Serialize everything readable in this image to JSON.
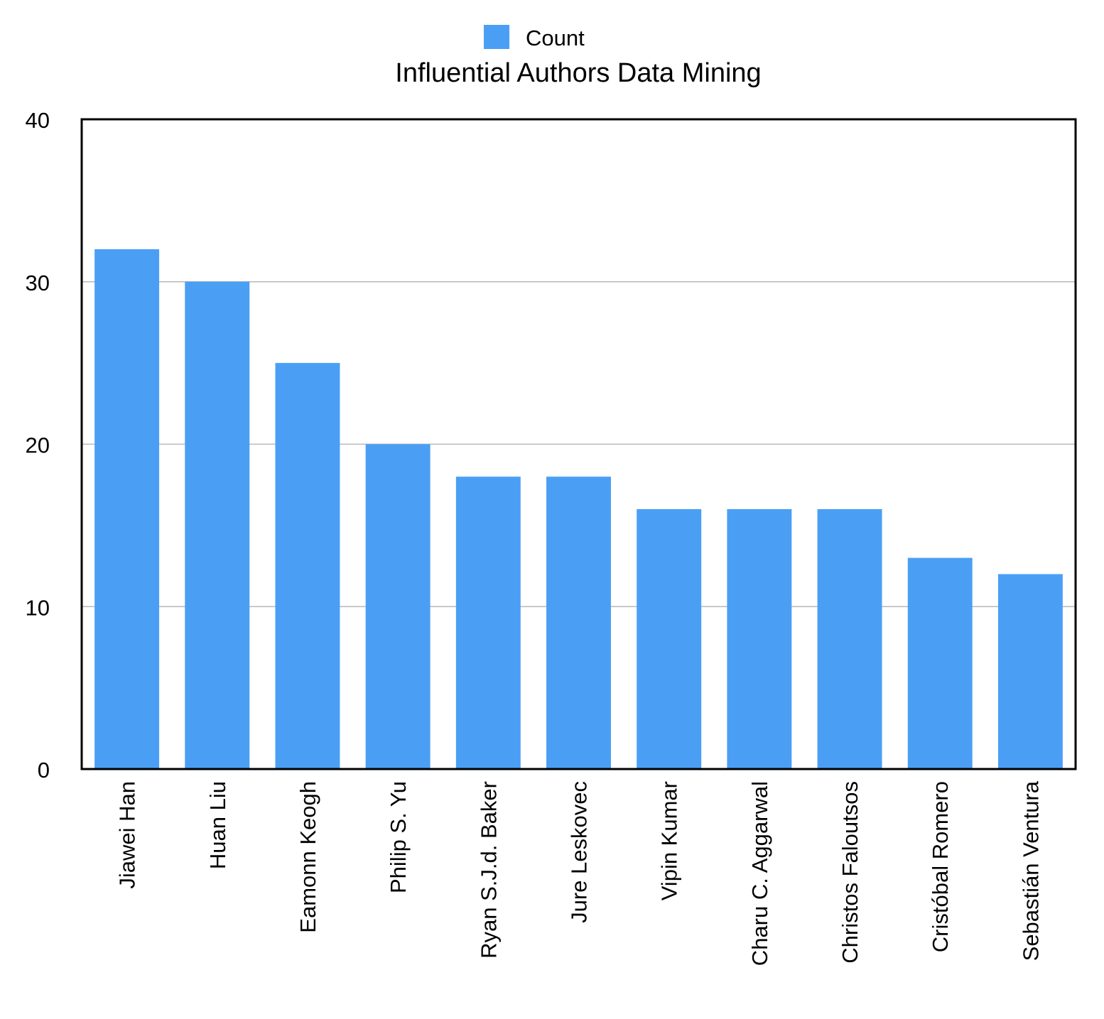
{
  "chart_data": {
    "type": "bar",
    "title": "Influential Authors Data Mining",
    "xlabel": "",
    "ylabel": "",
    "categories": [
      "Jiawei Han",
      "Huan Liu",
      "Eamonn Keogh",
      "Philip S. Yu",
      "Ryan S.J.d. Baker",
      "Jure Leskovec",
      "Vipin Kumar",
      "Charu C. Aggarwal",
      "Christos Faloutsos",
      "Cristóbal Romero",
      "Sebastián Ventura"
    ],
    "series": [
      {
        "name": "Count",
        "color": "#4A9FF5",
        "values": [
          32,
          30,
          25,
          20,
          18,
          18,
          16,
          16,
          16,
          13,
          12
        ]
      }
    ],
    "ylim": [
      0,
      40
    ],
    "yticks": [
      0,
      10,
      20,
      30,
      40
    ],
    "grid": true,
    "legend_position": "top-center"
  }
}
